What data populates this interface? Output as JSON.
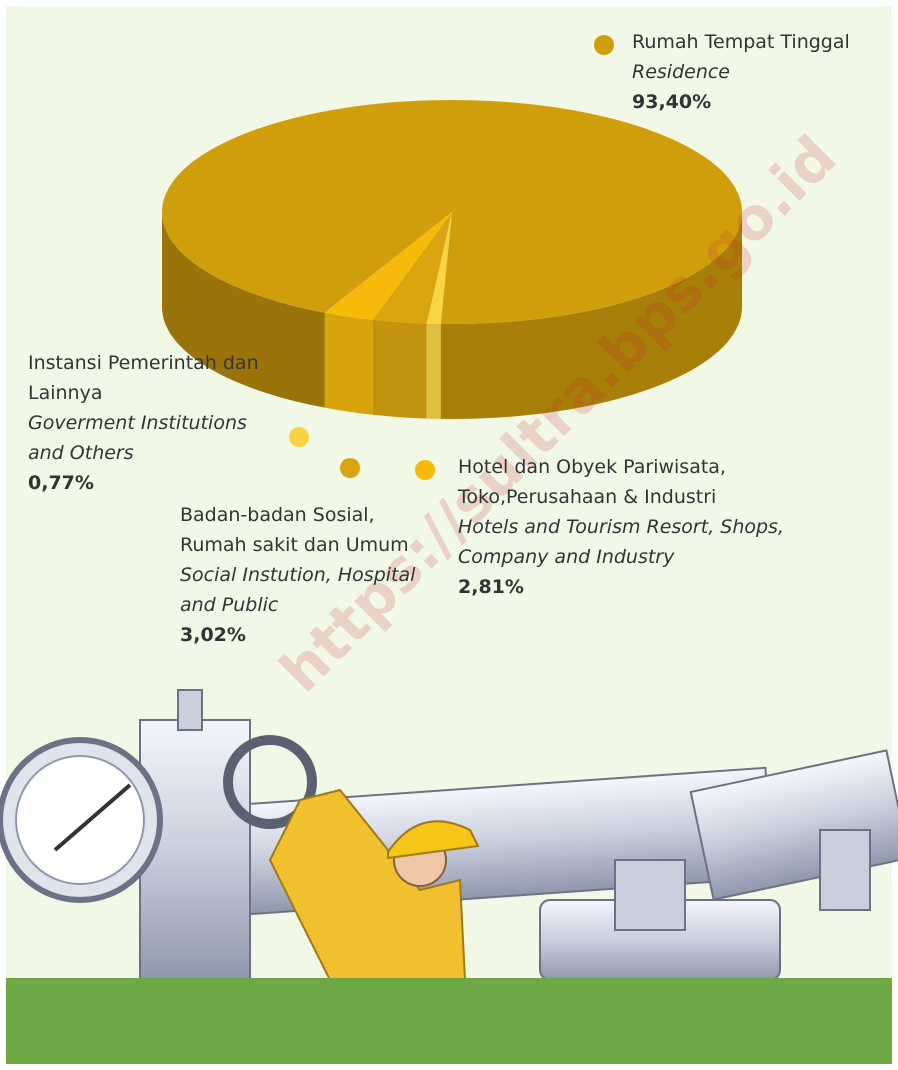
{
  "chart_data": {
    "type": "pie",
    "categories": [
      "Rumah Tempat Tinggal",
      "Instansi Pemerintah dan Lainnya",
      "Badan-badan Sosial, Rumah sakit dan Umum",
      "Hotel dan Obyek Pariwisata, Toko,Perusahaan & Industri"
    ],
    "categories_en": [
      "Residence",
      "Goverment Institutions and Others",
      "Social Instution, Hospital and Public",
      "Hotels and Tourism Resort, Shops, Company and Industry"
    ],
    "values": [
      93.4,
      0.77,
      3.02,
      2.81
    ],
    "value_labels": [
      "93,40%",
      "0,77%",
      "3,02%",
      "2,81%"
    ],
    "colors": [
      "#d19e0b",
      "#f8d444",
      "#dba40e",
      "#f6bb0a"
    ],
    "watermark": "https://sultra.bps.go.id"
  }
}
